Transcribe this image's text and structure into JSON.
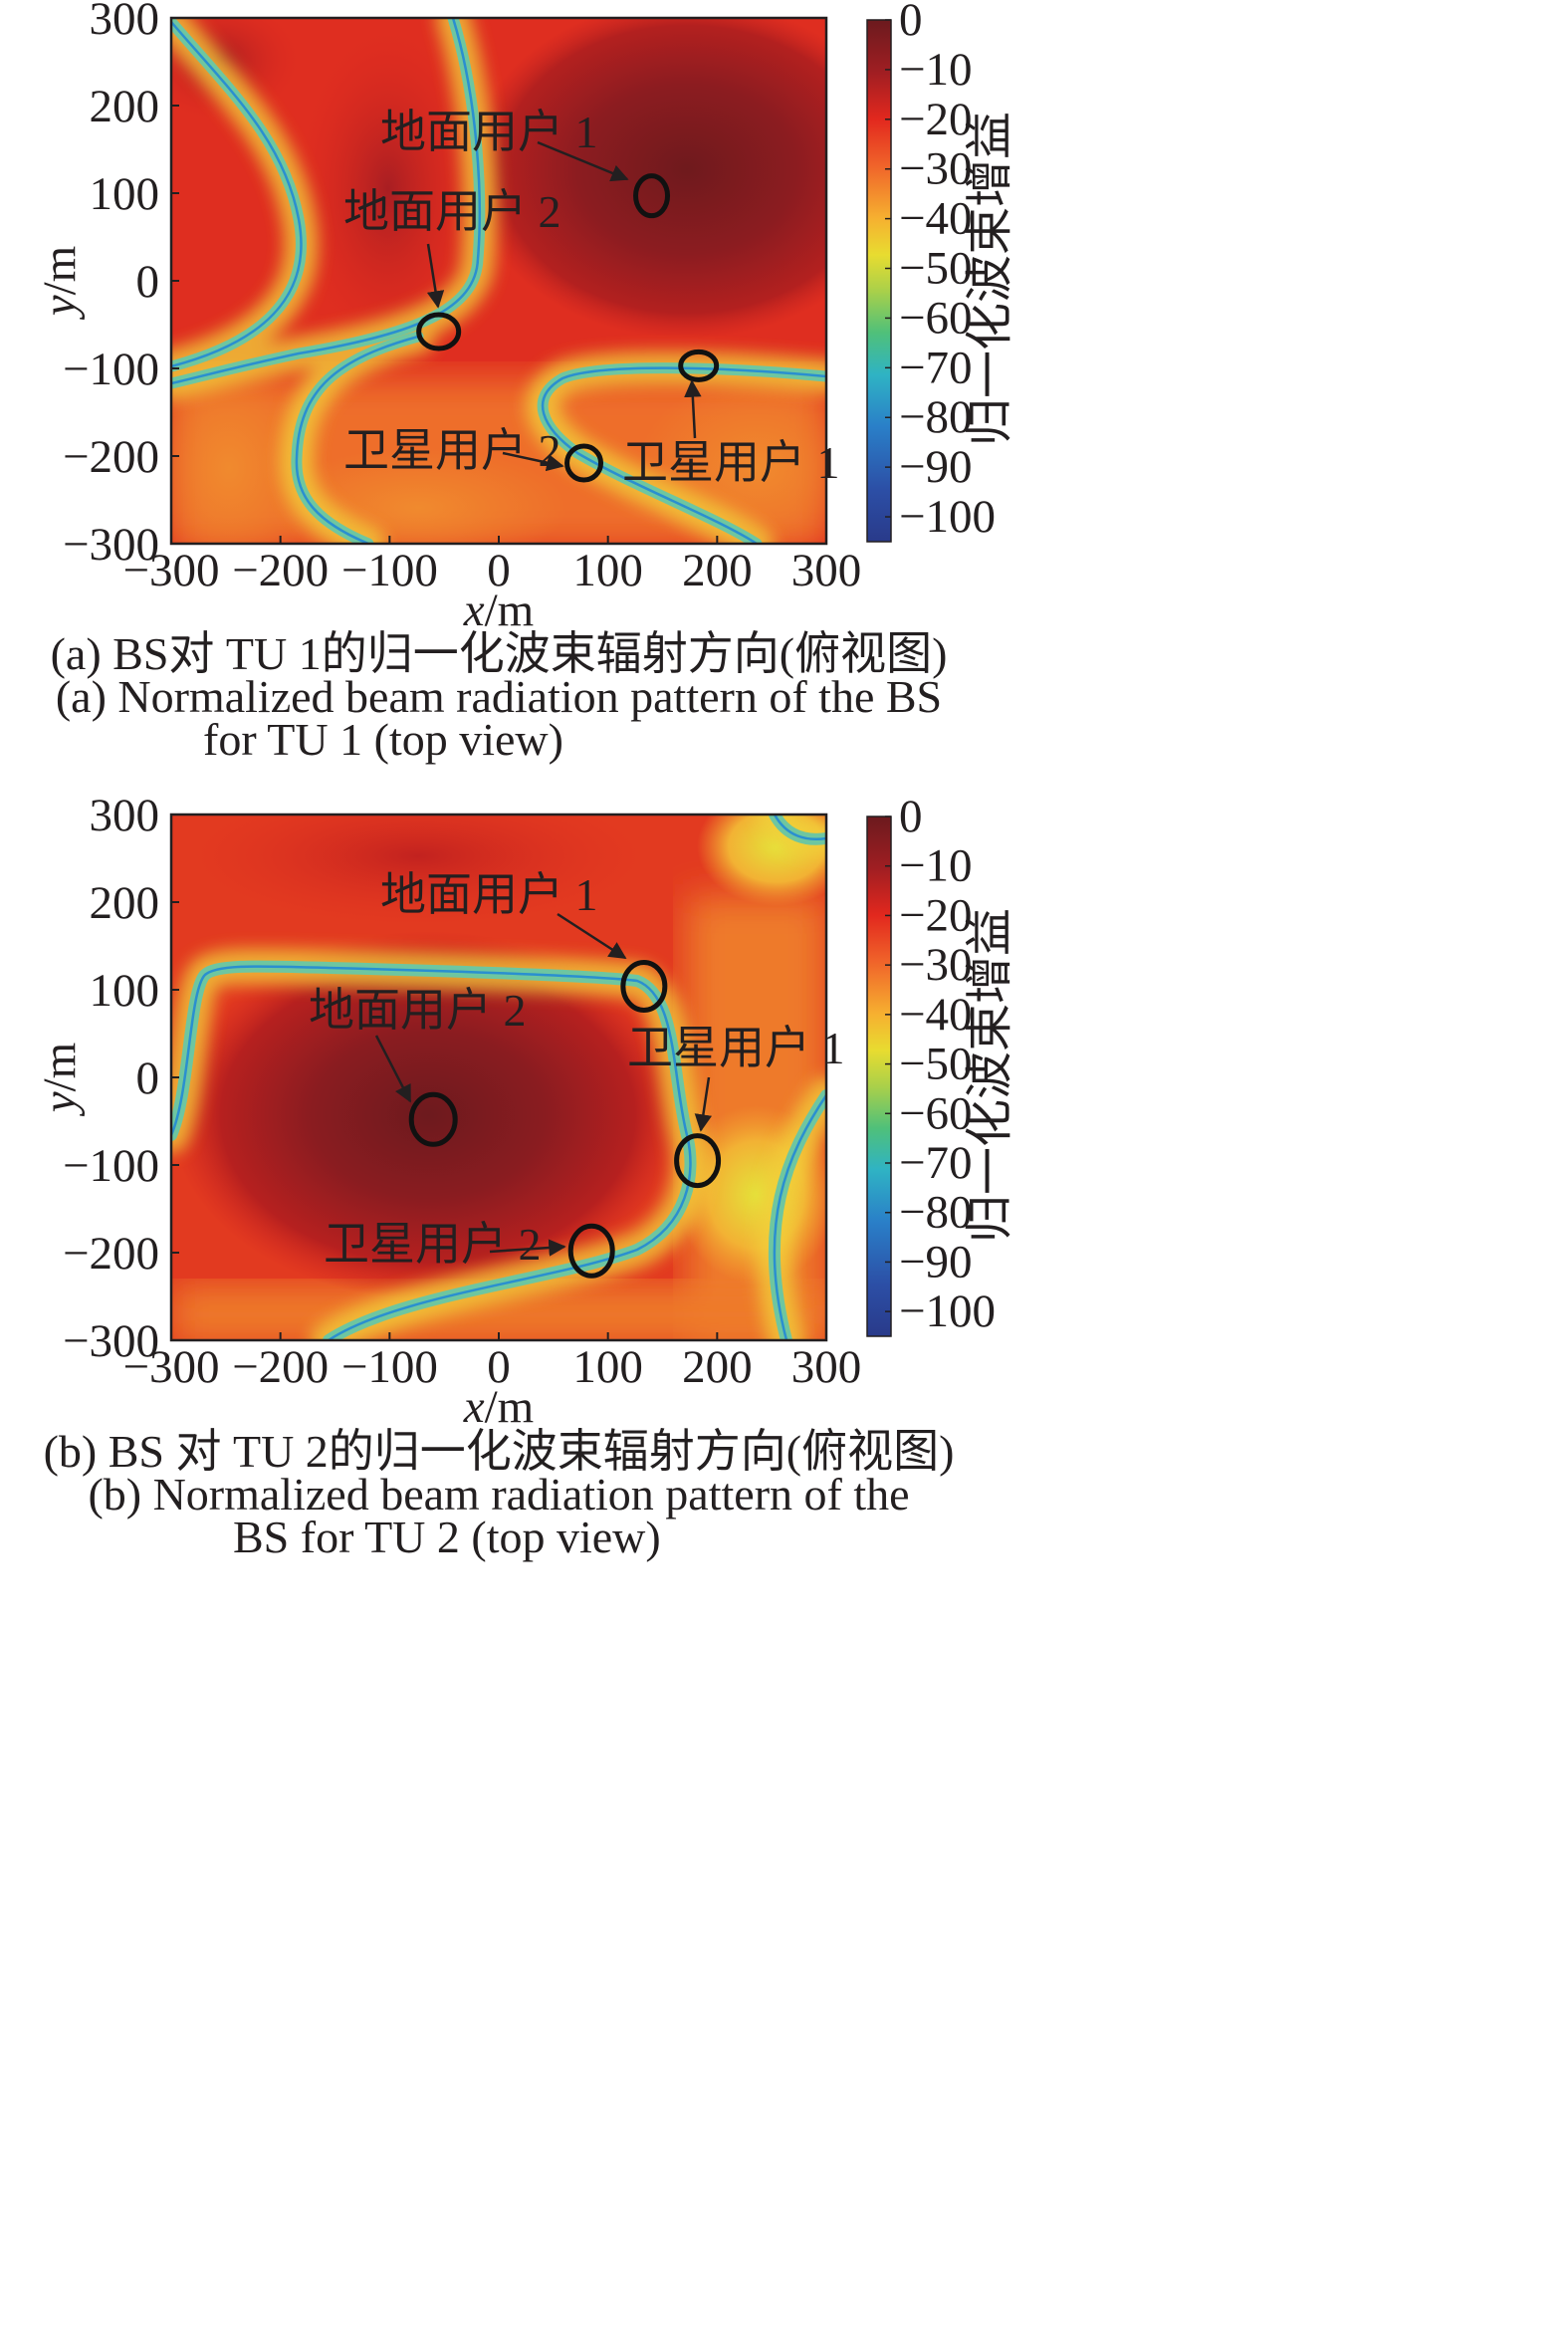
{
  "chart_data": [
    {
      "id": "a",
      "type": "heatmap",
      "xlabel_var": "x",
      "xlabel_unit": "/m",
      "ylabel_var": "y",
      "ylabel_unit": "/m",
      "xlim": [
        -300,
        300
      ],
      "ylim": [
        -300,
        300
      ],
      "xticks": [
        "−300",
        "−200",
        "−100",
        "0",
        "100",
        "200",
        "300"
      ],
      "yticks": [
        "300",
        "200",
        "100",
        "0",
        "−100",
        "−200",
        "−300"
      ],
      "colorbar": {
        "label": "归一化波束增益",
        "range": [
          -105,
          0
        ],
        "ticks": [
          "0",
          "−10",
          "−20",
          "−30",
          "−40",
          "−50",
          "−60",
          "−70",
          "−80",
          "−90",
          "−100"
        ]
      },
      "markers": [
        {
          "name": "ground-user-1",
          "label": "地面用户 1",
          "x": 140,
          "y": 97,
          "rx": 16,
          "ry": 20
        },
        {
          "name": "ground-user-2",
          "label": "地面用户 2",
          "x": -55,
          "y": -58,
          "rx": 20,
          "ry": 17
        },
        {
          "name": "satellite-user-1",
          "label": "卫星用户 1",
          "x": 183,
          "y": -97,
          "rx": 18,
          "ry": 14
        },
        {
          "name": "satellite-user-2",
          "label": "卫星用户 2",
          "x": 78,
          "y": -208,
          "rx": 17,
          "ry": 17
        }
      ],
      "caption_cn": "(a) BS对 TU 1的归一化波束辐射方向(俯视图)",
      "caption_en_1": "(a) Normalized beam radiation pattern of the BS",
      "caption_en_2": "for TU 1 (top view)",
      "description": "2D normalized beam gain map in dB; main lobe peak (~0 dB) near (140,100); nulls (~-70 dB) along curves through ground user 2 and satellite users"
    },
    {
      "id": "b",
      "type": "heatmap",
      "xlabel_var": "x",
      "xlabel_unit": "/m",
      "ylabel_var": "y",
      "ylabel_unit": "/m",
      "xlim": [
        -300,
        300
      ],
      "ylim": [
        -300,
        300
      ],
      "xticks": [
        "−300",
        "−200",
        "−100",
        "0",
        "100",
        "200",
        "300"
      ],
      "yticks": [
        "300",
        "200",
        "100",
        "0",
        "−100",
        "−200",
        "−300"
      ],
      "colorbar": {
        "label": "归一化波束增益",
        "range": [
          -105,
          0
        ],
        "ticks": [
          "0",
          "−10",
          "−20",
          "−30",
          "−40",
          "−50",
          "−60",
          "−70",
          "−80",
          "−90",
          "−100"
        ]
      },
      "markers": [
        {
          "name": "ground-user-1",
          "label": "地面用户 1",
          "x": 133,
          "y": 104,
          "rx": 21,
          "ry": 24
        },
        {
          "name": "ground-user-2",
          "label": "地面用户 2",
          "x": -60,
          "y": -48,
          "rx": 22,
          "ry": 25
        },
        {
          "name": "satellite-user-1",
          "label": "卫星用户 1",
          "x": 182,
          "y": -95,
          "rx": 21,
          "ry": 25
        },
        {
          "name": "satellite-user-2",
          "label": "卫星用户 2",
          "x": 85,
          "y": -198,
          "rx": 21,
          "ry": 25
        }
      ],
      "caption_cn": "(b) BS 对 TU 2的归一化波束辐射方向(俯视图)",
      "caption_en_1": "(b) Normalized beam radiation pattern of the",
      "caption_en_2": "BS for TU 2 (top view)",
      "description": "2D normalized beam gain map in dB; main lobe peak (~0 dB) near (-60,-50); nulls (~-70 dB) along a rectangular curve through ground user 1 and satellite users"
    }
  ]
}
